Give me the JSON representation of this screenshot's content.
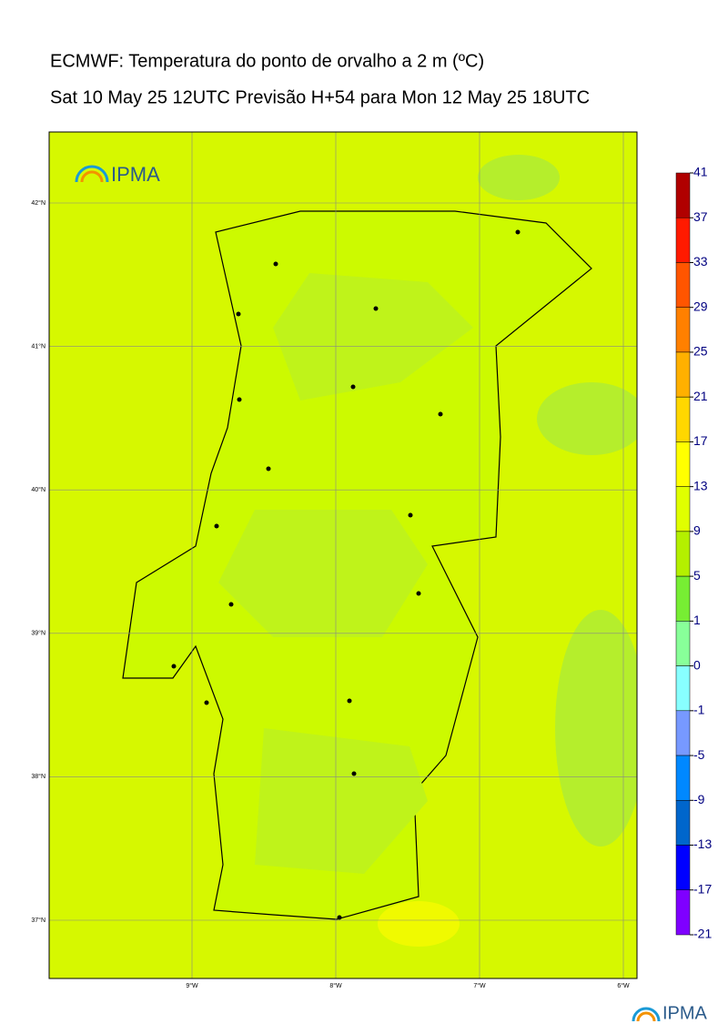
{
  "header": {
    "title": "ECMWF: Temperatura do ponto de orvalho a 2 m (ºC)",
    "subtitle": "Sat 10 May 25 12UTC Previsão H+54 para Mon 12 May 25 18UTC",
    "logo": "IPMA"
  },
  "map": {
    "lat_ticks": [
      {
        "value": 42,
        "label": "42°N"
      },
      {
        "value": 41,
        "label": "41°N"
      },
      {
        "value": 40,
        "label": "40°N"
      },
      {
        "value": 39,
        "label": "39°N"
      },
      {
        "value": 38,
        "label": "38°N"
      },
      {
        "value": 37,
        "label": "37°N"
      }
    ],
    "lon_ticks": [
      {
        "value": -9,
        "label": "9°W"
      },
      {
        "value": -8,
        "label": "8°W"
      },
      {
        "value": -7,
        "label": "7°W"
      },
      {
        "value": -6,
        "label": "6°W"
      }
    ]
  },
  "colorbar": {
    "levels": [
      41,
      37,
      33,
      29,
      25,
      21,
      17,
      13,
      9,
      5,
      1,
      0,
      -1,
      -5,
      -9,
      -13,
      -17,
      -21
    ],
    "colors": [
      "#b00000",
      "#ff1a00",
      "#ff5500",
      "#ff8000",
      "#ffb000",
      "#ffd700",
      "#ffff00",
      "#e0ff00",
      "#b4f000",
      "#77ee33",
      "#88ff99",
      "#88ffff",
      "#7799ff",
      "#0088ff",
      "#0066cc",
      "#0000ff",
      "#7f00ff"
    ]
  }
}
